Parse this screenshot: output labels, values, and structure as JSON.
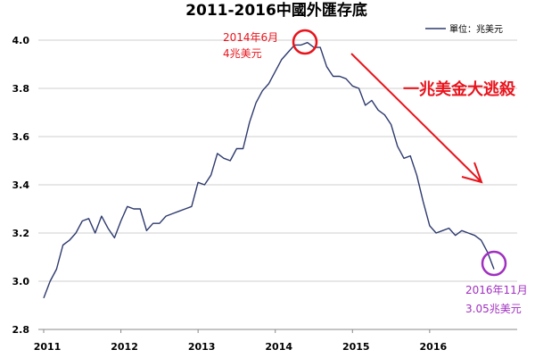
{
  "chart_data": {
    "type": "line",
    "title": "2011-2016中國外匯存底",
    "legend": {
      "entries": [
        "單位：兆美元"
      ],
      "placement": "top-right"
    },
    "series": [
      {
        "name": "單位：兆美元",
        "color": "#2e3a6e",
        "x": [
          "2011-01",
          "2011-02",
          "2011-03",
          "2011-04",
          "2011-05",
          "2011-06",
          "2011-07",
          "2011-08",
          "2011-09",
          "2011-10",
          "2011-11",
          "2011-12",
          "2012-01",
          "2012-02",
          "2012-03",
          "2012-04",
          "2012-05",
          "2012-06",
          "2012-07",
          "2012-08",
          "2012-09",
          "2012-10",
          "2012-11",
          "2012-12",
          "2013-01",
          "2013-02",
          "2013-03",
          "2013-04",
          "2013-05",
          "2013-06",
          "2013-07",
          "2013-08",
          "2013-09",
          "2013-10",
          "2013-11",
          "2013-12",
          "2014-01",
          "2014-02",
          "2014-03",
          "2014-04",
          "2014-05",
          "2014-06",
          "2014-07",
          "2014-08",
          "2014-09",
          "2014-10",
          "2014-11",
          "2014-12",
          "2015-01",
          "2015-02",
          "2015-03",
          "2015-04",
          "2015-05",
          "2015-06",
          "2015-07",
          "2015-08",
          "2015-09",
          "2015-10",
          "2015-11",
          "2015-12",
          "2016-01",
          "2016-02",
          "2016-03",
          "2016-04",
          "2016-05",
          "2016-06",
          "2016-07",
          "2016-08",
          "2016-09",
          "2016-10",
          "2016-11"
        ],
        "values": [
          2.93,
          3.0,
          3.05,
          3.15,
          3.17,
          3.2,
          3.25,
          3.26,
          3.2,
          3.27,
          3.22,
          3.18,
          3.25,
          3.31,
          3.3,
          3.3,
          3.21,
          3.24,
          3.24,
          3.27,
          3.28,
          3.29,
          3.3,
          3.31,
          3.41,
          3.4,
          3.44,
          3.53,
          3.51,
          3.5,
          3.55,
          3.55,
          3.66,
          3.74,
          3.79,
          3.82,
          3.87,
          3.92,
          3.95,
          3.98,
          3.98,
          3.99,
          3.97,
          3.97,
          3.89,
          3.85,
          3.85,
          3.84,
          3.81,
          3.8,
          3.73,
          3.75,
          3.71,
          3.69,
          3.65,
          3.56,
          3.51,
          3.52,
          3.44,
          3.33,
          3.23,
          3.2,
          3.21,
          3.22,
          3.19,
          3.21,
          3.2,
          3.19,
          3.17,
          3.12,
          3.05
        ]
      }
    ],
    "y_ticks": [
      2.8,
      3.0,
      3.2,
      3.4,
      3.6,
      3.8,
      4.0
    ],
    "y_tick_labels": [
      "2.8",
      "3.0",
      "3.2",
      "3.4",
      "3.6",
      "3.8",
      "4.0"
    ],
    "ylim": [
      2.8,
      4.0
    ],
    "x_tick_labels": [
      "2011",
      "2012",
      "2013",
      "2014",
      "2015",
      "2016"
    ],
    "x_tick_positions": [
      "2011-01",
      "2012-01",
      "2013-01",
      "2014-01",
      "2015-01",
      "2016-01"
    ],
    "grid": {
      "horizontal": true,
      "vertical": false
    },
    "xlabel": "",
    "ylabel": "",
    "annotations": {
      "peak": {
        "date_label": "2014年6月",
        "value_label": "4兆美元",
        "color": "#e8141c",
        "at": "2014-06"
      },
      "trough": {
        "date_label": "2016年11月",
        "value_label": "3.05兆美元",
        "color": "#a030c0",
        "at": "2016-11"
      },
      "headline": {
        "text": "一兆美金大逃殺",
        "color": "#e8141c"
      }
    }
  }
}
